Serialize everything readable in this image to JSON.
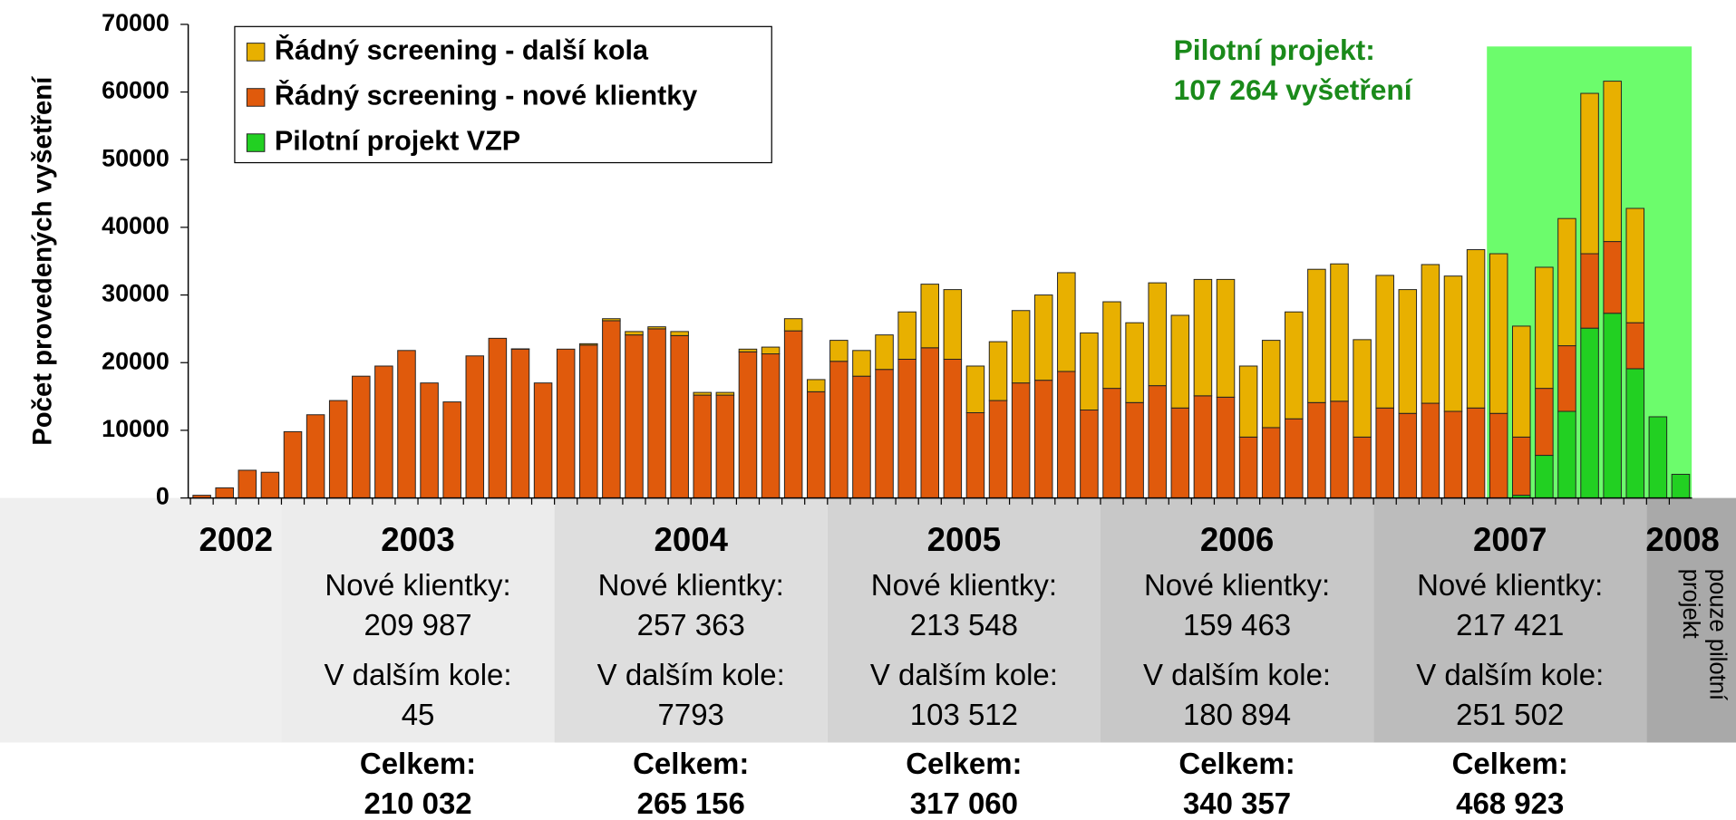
{
  "chart_data": {
    "type": "stacked-bar",
    "ylabel": "Počet provedených vyšetření",
    "ylim": [
      0,
      70000
    ],
    "yticks": [
      0,
      10000,
      20000,
      30000,
      40000,
      50000,
      60000,
      70000
    ],
    "legend": "top-left",
    "categories": [
      null,
      null,
      null,
      null,
      null,
      null,
      null,
      null,
      null,
      null,
      null,
      null,
      null,
      null,
      null,
      null,
      null,
      null,
      null,
      null,
      null,
      null,
      null,
      null,
      null,
      null,
      null,
      null,
      null,
      null,
      null,
      null,
      null,
      null,
      null,
      null,
      null,
      null,
      null,
      null,
      null,
      null,
      null,
      null,
      null,
      null,
      null,
      null,
      null,
      null,
      null,
      null,
      null,
      null,
      null,
      null,
      null,
      null,
      null,
      null,
      null,
      null,
      null,
      null,
      null,
      null
    ],
    "series": [
      {
        "name": "Řádný screening - další kola",
        "color": "#e8b000",
        "values": [
          0,
          0,
          0,
          0,
          0,
          0,
          0,
          0,
          0,
          0,
          0,
          0,
          0,
          0,
          45,
          0,
          0,
          200,
          300,
          500,
          300,
          600,
          400,
          400,
          400,
          1000,
          1800,
          1800,
          3100,
          3800,
          5100,
          7000,
          9400,
          10300,
          6900,
          8700,
          10700,
          12600,
          14600,
          11400,
          12800,
          11800,
          15200,
          13700,
          17200,
          17400,
          10500,
          12900,
          15800,
          19700,
          20300,
          14400,
          19600,
          18300,
          20500,
          20000,
          23400,
          23600,
          16400,
          17900,
          18800,
          23700,
          23700,
          16900,
          0,
          0
        ]
      },
      {
        "name": "Řádný screening - nové klientky",
        "color": "#e05a0c",
        "values": [
          400,
          1500,
          4100,
          3800,
          9800,
          12300,
          14400,
          18000,
          19500,
          21800,
          17000,
          14200,
          21000,
          23600,
          22000,
          17000,
          22000,
          22600,
          26200,
          24100,
          25000,
          24000,
          15200,
          15200,
          21600,
          21300,
          24700,
          15700,
          20200,
          18000,
          19000,
          20500,
          22200,
          20500,
          12600,
          14400,
          17000,
          17400,
          18700,
          13000,
          16200,
          14100,
          16600,
          13300,
          15100,
          14900,
          9000,
          10400,
          11700,
          14100,
          14300,
          9000,
          13300,
          12500,
          14000,
          12800,
          13300,
          12500,
          8600,
          9900,
          9700,
          11000,
          10600,
          6800,
          0,
          0
        ]
      },
      {
        "name": "Pilotní projekt VZP",
        "color": "#22d022",
        "values": [
          0,
          0,
          0,
          0,
          0,
          0,
          0,
          0,
          0,
          0,
          0,
          0,
          0,
          0,
          0,
          0,
          0,
          0,
          0,
          0,
          0,
          0,
          0,
          0,
          0,
          0,
          0,
          0,
          0,
          0,
          0,
          0,
          0,
          0,
          0,
          0,
          0,
          0,
          0,
          0,
          0,
          0,
          0,
          0,
          0,
          0,
          0,
          0,
          0,
          0,
          0,
          0,
          0,
          0,
          0,
          0,
          0,
          0,
          400,
          6300,
          12800,
          25100,
          27300,
          19100,
          12000,
          3500
        ]
      }
    ],
    "annotation": [
      "Pilotní projekt:",
      "107 264 vyšetření"
    ],
    "periods": [
      {
        "year": "2002"
      },
      {
        "year": "2003",
        "new_label": "Nové klientky:",
        "new": "209 987",
        "next_label": "V dalším kole:",
        "next": "45",
        "total_label": "Celkem:",
        "total": "210 032"
      },
      {
        "year": "2004",
        "new_label": "Nové klientky:",
        "new": "257 363",
        "next_label": "V dalším kole:",
        "next": "7793",
        "total_label": "Celkem:",
        "total": "265 156"
      },
      {
        "year": "2005",
        "new_label": "Nové klientky:",
        "new": "213 548",
        "next_label": "V dalším kole:",
        "next": "103 512",
        "total_label": "Celkem:",
        "total": "317 060"
      },
      {
        "year": "2006",
        "new_label": "Nové klientky:",
        "new": "159 463",
        "next_label": "V dalším kole:",
        "next": "180 894",
        "total_label": "Celkem:",
        "total": "340 357"
      },
      {
        "year": "2007",
        "new_label": "Nové klientky:",
        "new": "217 421",
        "next_label": "V dalším kole:",
        "next": "251 502",
        "total_label": "Celkem:",
        "total": "468 923"
      },
      {
        "year": "2008",
        "note": [
          "pouze pilotní",
          "projekt"
        ]
      }
    ]
  }
}
